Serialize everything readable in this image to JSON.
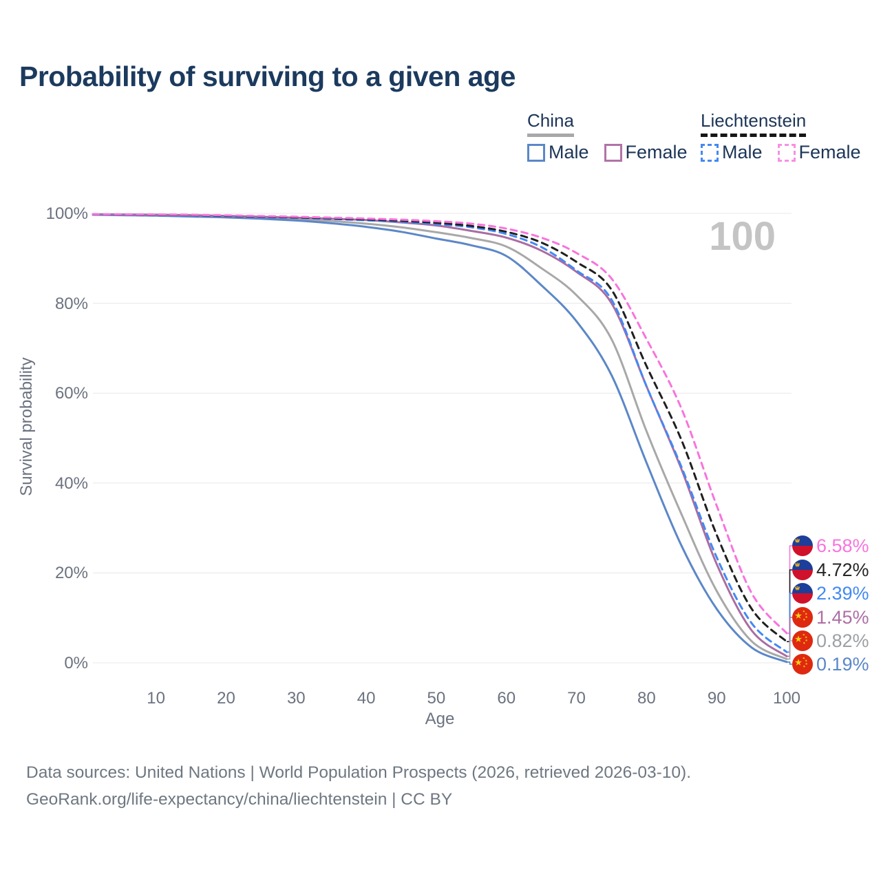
{
  "title": "Probability of surviving to a given age",
  "watermark": "100",
  "legend": {
    "groups": [
      {
        "label": "China",
        "items": [
          {
            "label": "Male"
          },
          {
            "label": "Female"
          }
        ]
      },
      {
        "label": "Liechtenstein",
        "items": [
          {
            "label": "Male"
          },
          {
            "label": "Female"
          }
        ]
      }
    ]
  },
  "axes": {
    "y_label": "Survival probability",
    "x_label": "Age",
    "y_ticks": [
      "0%",
      "20%",
      "40%",
      "60%",
      "80%",
      "100%"
    ],
    "x_ticks": [
      "10",
      "20",
      "30",
      "40",
      "50",
      "60",
      "70",
      "80",
      "90",
      "100"
    ]
  },
  "end_labels": [
    {
      "value": "6.58%",
      "flag": "liechtenstein",
      "color": "#f874dd",
      "series": 5
    },
    {
      "value": "4.72%",
      "flag": "liechtenstein",
      "color": "#262626",
      "series": 4
    },
    {
      "value": "2.39%",
      "flag": "liechtenstein",
      "color": "#4389f2",
      "series": 3
    },
    {
      "value": "1.45%",
      "flag": "china",
      "color": "#ae6ea6",
      "series": 2
    },
    {
      "value": "0.82%",
      "flag": "china",
      "color": "#9da0a3",
      "series": 0
    },
    {
      "value": "0.19%",
      "flag": "china",
      "color": "#5b87c7",
      "series": 1
    }
  ],
  "source": {
    "line1": "Data sources: United Nations | World Population Prospects (2026, retrieved 2026-03-10).",
    "line2": "GeoRank.org/life-expectancy/china/liechtenstein | CC BY"
  },
  "chart_data": {
    "type": "line",
    "title": "Probability of surviving to a given age",
    "xlabel": "Age",
    "ylabel": "Survival probability",
    "xlim": [
      1,
      100
    ],
    "ylim": [
      0,
      100
    ],
    "grid": "horizontal",
    "x": [
      1,
      5,
      10,
      15,
      20,
      25,
      30,
      35,
      40,
      45,
      50,
      55,
      60,
      65,
      70,
      75,
      80,
      85,
      90,
      95,
      100
    ],
    "series": [
      {
        "name": "China Both sexes",
        "style": "solid",
        "color": "#a8a8a8",
        "values": [
          99.75,
          99.7,
          99.6,
          99.5,
          99.3,
          99.0,
          98.7,
          98.3,
          97.7,
          96.9,
          95.8,
          94.5,
          92.6,
          87.8,
          81.8,
          72.0,
          51.5,
          33.0,
          16.0,
          4.8,
          0.82
        ]
      },
      {
        "name": "China Male",
        "style": "solid",
        "color": "#5b87c7",
        "values": [
          99.7,
          99.6,
          99.5,
          99.3,
          99.1,
          98.8,
          98.4,
          97.8,
          97.0,
          95.9,
          94.4,
          92.9,
          90.5,
          84.0,
          76.0,
          64.0,
          44.5,
          26.0,
          12.0,
          3.4,
          0.19
        ]
      },
      {
        "name": "China Female",
        "style": "solid",
        "color": "#aa6da2",
        "values": [
          99.8,
          99.75,
          99.7,
          99.6,
          99.45,
          99.25,
          99.05,
          98.8,
          98.5,
          98.0,
          97.3,
          96.1,
          94.6,
          91.7,
          87.0,
          80.0,
          61.5,
          43.0,
          22.0,
          7.2,
          1.45
        ]
      },
      {
        "name": "Liechtenstein Male",
        "style": "dashed",
        "color": "#4389f2",
        "values": [
          99.75,
          99.72,
          99.68,
          99.6,
          99.4,
          99.2,
          99.0,
          98.75,
          98.45,
          98.1,
          97.6,
          96.9,
          95.4,
          92.5,
          87.3,
          80.8,
          61.5,
          43.5,
          23.5,
          8.8,
          2.39
        ]
      },
      {
        "name": "Liechtenstein Both sexes",
        "style": "dashed",
        "color": "#1f1f1f",
        "values": [
          99.78,
          99.75,
          99.7,
          99.62,
          99.45,
          99.3,
          99.1,
          98.9,
          98.65,
          98.35,
          97.9,
          97.2,
          95.9,
          93.5,
          89.2,
          83.0,
          66.0,
          49.5,
          28.5,
          12.0,
          4.72
        ]
      },
      {
        "name": "Liechtenstein Female",
        "style": "dashed",
        "color": "#f874dd",
        "values": [
          99.8,
          99.78,
          99.75,
          99.68,
          99.55,
          99.4,
          99.25,
          99.05,
          98.85,
          98.6,
          98.25,
          97.7,
          96.6,
          94.6,
          91.2,
          85.5,
          72.0,
          56.5,
          35.0,
          15.5,
          6.58
        ]
      }
    ]
  }
}
